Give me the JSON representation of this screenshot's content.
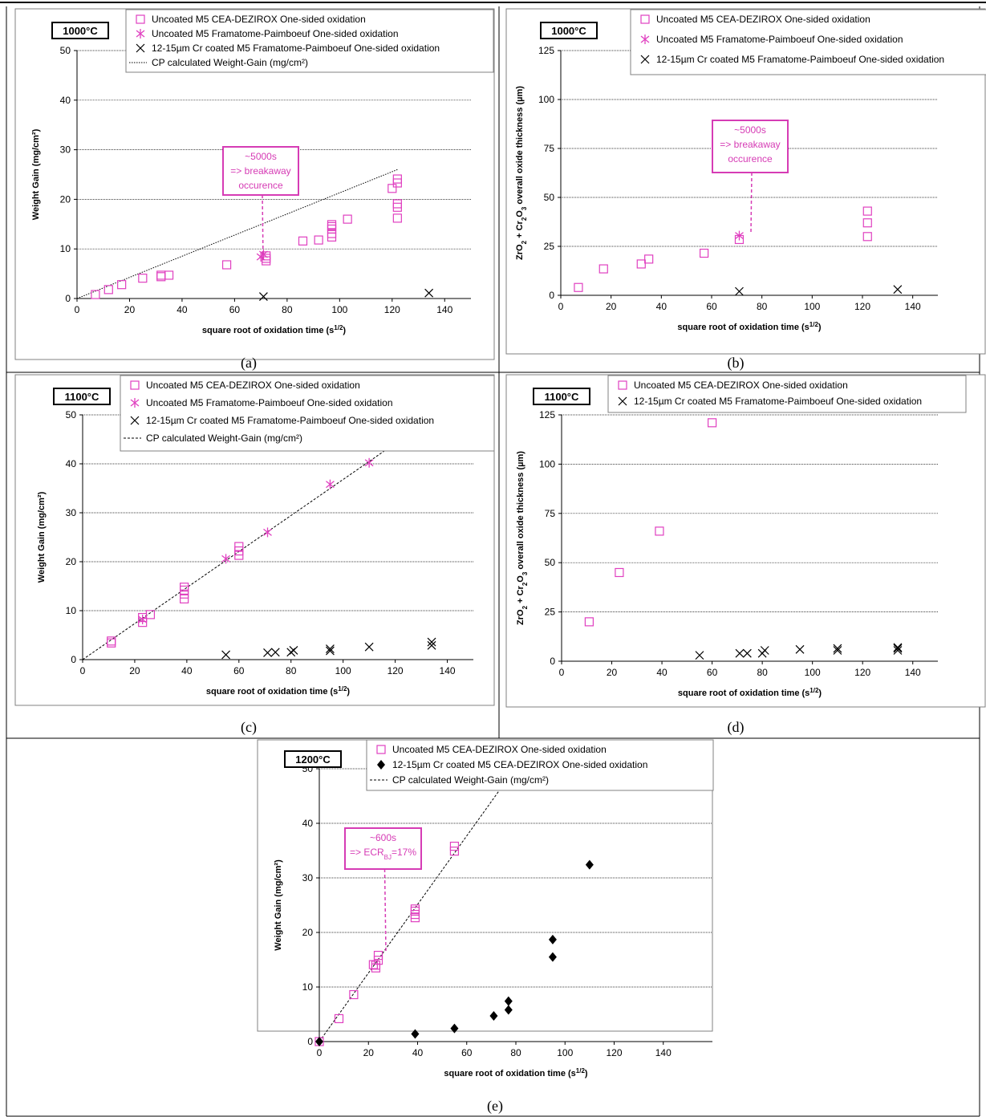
{
  "colors": {
    "uncoated": "#e040c0",
    "coated": "#000000",
    "annotation": "#d63cb5",
    "grid": "#000000"
  },
  "panels": [
    {
      "caption": "(a)",
      "temperature": "1000°C",
      "legend": [
        "Uncoated M5 CEA-DEZIROX One-sided oxidation",
        "Uncoated M5 Framatome-Paimboeuf One-sided oxidation",
        "12-15µm Cr coated M5 Framatome-Paimboeuf One-sided oxidation",
        "CP calculated Weight-Gain (mg/cm²)"
      ],
      "annotation": [
        "~5000s",
        "=> breakaway",
        "occurence"
      ]
    },
    {
      "caption": "(b)",
      "temperature": "1000°C",
      "legend": [
        "Uncoated M5 CEA-DEZIROX One-sided oxidation",
        "Uncoated M5 Framatome-Paimboeuf One-sided oxidation",
        "12-15µm Cr coated M5 Framatome-Paimboeuf One-sided oxidation"
      ],
      "annotation": [
        "~5000s",
        "=> breakaway",
        "occurence"
      ]
    },
    {
      "caption": "(c)",
      "temperature": "1100°C",
      "legend": [
        "Uncoated M5 CEA-DEZIROX One-sided oxidation",
        "Uncoated M5 Framatome-Paimboeuf One-sided oxidation",
        "12-15µm Cr coated M5 Framatome-Paimboeuf One-sided oxidation",
        "CP calculated Weight-Gain (mg/cm²)"
      ],
      "annotation": []
    },
    {
      "caption": "(d)",
      "temperature": "1100°C",
      "legend": [
        "Uncoated M5 CEA-DEZIROX One-sided oxidation",
        "12-15µm Cr coated M5 Framatome-Paimboeuf One-sided oxidation"
      ],
      "annotation": []
    },
    {
      "caption": "(e)",
      "temperature": "1200°C",
      "legend": [
        "Uncoated M5 CEA-DEZIROX One-sided oxidation",
        "12-15µm Cr coated M5 CEA-DEZIROX One-sided oxidation",
        "CP calculated Weight-Gain (mg/cm²)"
      ],
      "annotation": [
        "~600s",
        "=> ECR",
        "BJ",
        "=17%"
      ]
    }
  ],
  "chart_data": [
    {
      "type": "scatter",
      "title": "1000°C",
      "xlabel": "square root of oxidation time (s1/2)",
      "ylabel": "Weight Gain (mg/cm²)",
      "xlim": [
        0,
        150
      ],
      "ylim": [
        0,
        50
      ],
      "xticks": [
        0,
        20,
        40,
        60,
        80,
        100,
        120,
        140
      ],
      "yticks": [
        0,
        10,
        20,
        30,
        40,
        50
      ],
      "grid": "horizontal dotted",
      "legend_position": "top-right",
      "series": [
        {
          "name": "Uncoated M5 CEA-DEZIROX One-sided oxidation",
          "marker": "square",
          "x": [
            7,
            12,
            17,
            25,
            32,
            32,
            35,
            57,
            72,
            72,
            72,
            86,
            92,
            97,
            97,
            97,
            97,
            97,
            103,
            120,
            122,
            122,
            122,
            122,
            122
          ],
          "y": [
            0.8,
            1.8,
            2.8,
            4.1,
            4.4,
            4.7,
            4.7,
            6.8,
            7.6,
            8.1,
            8.6,
            11.6,
            11.8,
            12.4,
            13.1,
            14.0,
            14.5,
            14.9,
            16.0,
            22.2,
            16.2,
            18.4,
            19.1,
            23.3,
            24.1
          ]
        },
        {
          "name": "Uncoated M5 Framatome-Paimboeuf One-sided oxidation",
          "marker": "asterisk",
          "x": [
            70,
            71
          ],
          "y": [
            8.4,
            8.9
          ]
        },
        {
          "name": "12-15µm Cr coated M5 Framatome-Paimboeuf One-sided oxidation",
          "marker": "x",
          "x": [
            71,
            134
          ],
          "y": [
            0.4,
            1.1
          ]
        },
        {
          "name": "CP calculated Weight-Gain (mg/cm²)",
          "line": "dotted",
          "x": [
            0,
            122
          ],
          "y": [
            0,
            26
          ]
        }
      ]
    },
    {
      "type": "scatter",
      "title": "1000°C",
      "xlabel": "square root of oxidation time (s1/2)",
      "ylabel": "ZrO2 + Cr2O3 overall oxide thickness (µm)",
      "xlim": [
        0,
        150
      ],
      "ylim": [
        0,
        125
      ],
      "xticks": [
        0,
        20,
        40,
        60,
        80,
        100,
        120,
        140
      ],
      "yticks": [
        0,
        25,
        50,
        75,
        100,
        125
      ],
      "grid": "horizontal dotted",
      "legend_position": "top-right",
      "series": [
        {
          "name": "Uncoated M5 CEA-DEZIROX One-sided oxidation",
          "marker": "square",
          "x": [
            7,
            17,
            32,
            35,
            57,
            71,
            122,
            122,
            122
          ],
          "y": [
            4,
            13.5,
            16,
            18.5,
            21.5,
            28.5,
            30,
            37,
            43
          ]
        },
        {
          "name": "Uncoated M5 Framatome-Paimboeuf One-sided oxidation",
          "marker": "asterisk",
          "x": [
            71
          ],
          "y": [
            30.5
          ]
        },
        {
          "name": "12-15µm Cr coated M5 Framatome-Paimboeuf One-sided oxidation",
          "marker": "x",
          "x": [
            71,
            134
          ],
          "y": [
            2,
            3
          ]
        }
      ]
    },
    {
      "type": "scatter",
      "title": "1100°C",
      "xlabel": "square root of oxidation time (s1/2)",
      "ylabel": "Weight Gain (mg/cm²)",
      "xlim": [
        0,
        150
      ],
      "ylim": [
        0,
        50
      ],
      "xticks": [
        0,
        20,
        40,
        60,
        80,
        100,
        120,
        140
      ],
      "yticks": [
        0,
        10,
        20,
        30,
        40,
        50
      ],
      "grid": "horizontal dotted",
      "legend_position": "top-right",
      "series": [
        {
          "name": "Uncoated M5 CEA-DEZIROX One-sided oxidation",
          "marker": "square",
          "x": [
            11,
            11,
            23,
            23,
            26,
            39,
            39,
            39,
            39,
            60,
            60,
            60
          ],
          "y": [
            3.4,
            3.8,
            7.6,
            8.6,
            9.2,
            12.4,
            13.4,
            14.2,
            14.8,
            21.3,
            22.2,
            23.1
          ]
        },
        {
          "name": "Uncoated M5 Framatome-Paimboeuf One-sided oxidation",
          "marker": "asterisk",
          "x": [
            23,
            55,
            71,
            95,
            110
          ],
          "y": [
            8.2,
            20.6,
            26.0,
            35.8,
            40.2
          ]
        },
        {
          "name": "12-15µm Cr coated M5 Framatome-Paimboeuf One-sided oxidation",
          "marker": "x",
          "x": [
            55,
            71,
            74,
            80,
            81,
            95,
            95,
            110,
            134,
            134
          ],
          "y": [
            1.0,
            1.4,
            1.5,
            1.5,
            1.9,
            1.8,
            2.2,
            2.6,
            2.9,
            3.6
          ]
        },
        {
          "name": "CP calculated Weight-Gain (mg/cm²)",
          "line": "dashed",
          "x": [
            0,
            125
          ],
          "y": [
            0,
            46
          ]
        }
      ]
    },
    {
      "type": "scatter",
      "title": "1100°C",
      "xlabel": "square root of oxidation time (s1/2)",
      "ylabel": "ZrO2 + Cr2O3 overall oxide thickness (µm)",
      "xlim": [
        0,
        150
      ],
      "ylim": [
        0,
        125
      ],
      "xticks": [
        0,
        20,
        40,
        60,
        80,
        100,
        120,
        140
      ],
      "yticks": [
        0,
        25,
        50,
        75,
        100,
        125
      ],
      "grid": "horizontal dotted",
      "legend_position": "top",
      "series": [
        {
          "name": "Uncoated M5 CEA-DEZIROX One-sided oxidation",
          "marker": "square",
          "x": [
            11,
            23,
            39,
            60
          ],
          "y": [
            20,
            45,
            66,
            121
          ]
        },
        {
          "name": "12-15µm Cr coated M5 Framatome-Paimboeuf One-sided oxidation",
          "marker": "x",
          "x": [
            55,
            71,
            74,
            80,
            81,
            95,
            110,
            110,
            134,
            134,
            134
          ],
          "y": [
            3,
            4,
            4,
            4,
            5.5,
            6,
            5.5,
            6.5,
            5.5,
            6.5,
            7
          ]
        }
      ]
    },
    {
      "type": "scatter",
      "title": "1200°C",
      "xlabel": "square root of oxidation time (s1/2)",
      "ylabel": "Weight Gain (mg/cm²)",
      "xlim": [
        0,
        160
      ],
      "ylim": [
        0,
        50
      ],
      "xticks": [
        0,
        20,
        40,
        60,
        80,
        100,
        120,
        140
      ],
      "yticks": [
        0,
        10,
        20,
        30,
        40,
        50
      ],
      "grid": "horizontal dotted",
      "legend_position": "top-right",
      "series": [
        {
          "name": "Uncoated M5 CEA-DEZIROX One-sided oxidation",
          "marker": "square",
          "x": [
            0,
            8,
            14,
            22,
            23,
            23,
            24,
            24,
            39,
            39,
            39,
            39,
            55,
            55,
            78
          ],
          "y": [
            0,
            4.2,
            8.6,
            14.1,
            13.5,
            14.0,
            14.9,
            15.8,
            22.7,
            23.3,
            23.9,
            24.3,
            34.9,
            35.8,
            48.9
          ]
        },
        {
          "name": "12-15µm Cr coated M5 CEA-DEZIROX One-sided oxidation",
          "marker": "diamond",
          "x": [
            0,
            39,
            55,
            71,
            77,
            77,
            95,
            95,
            110
          ],
          "y": [
            0,
            1.4,
            2.4,
            4.7,
            5.8,
            7.4,
            15.5,
            18.7,
            32.4
          ]
        },
        {
          "name": "CP calculated Weight-Gain (mg/cm²)",
          "line": "dashed",
          "x": [
            0,
            78
          ],
          "y": [
            0,
            49
          ]
        }
      ]
    }
  ]
}
